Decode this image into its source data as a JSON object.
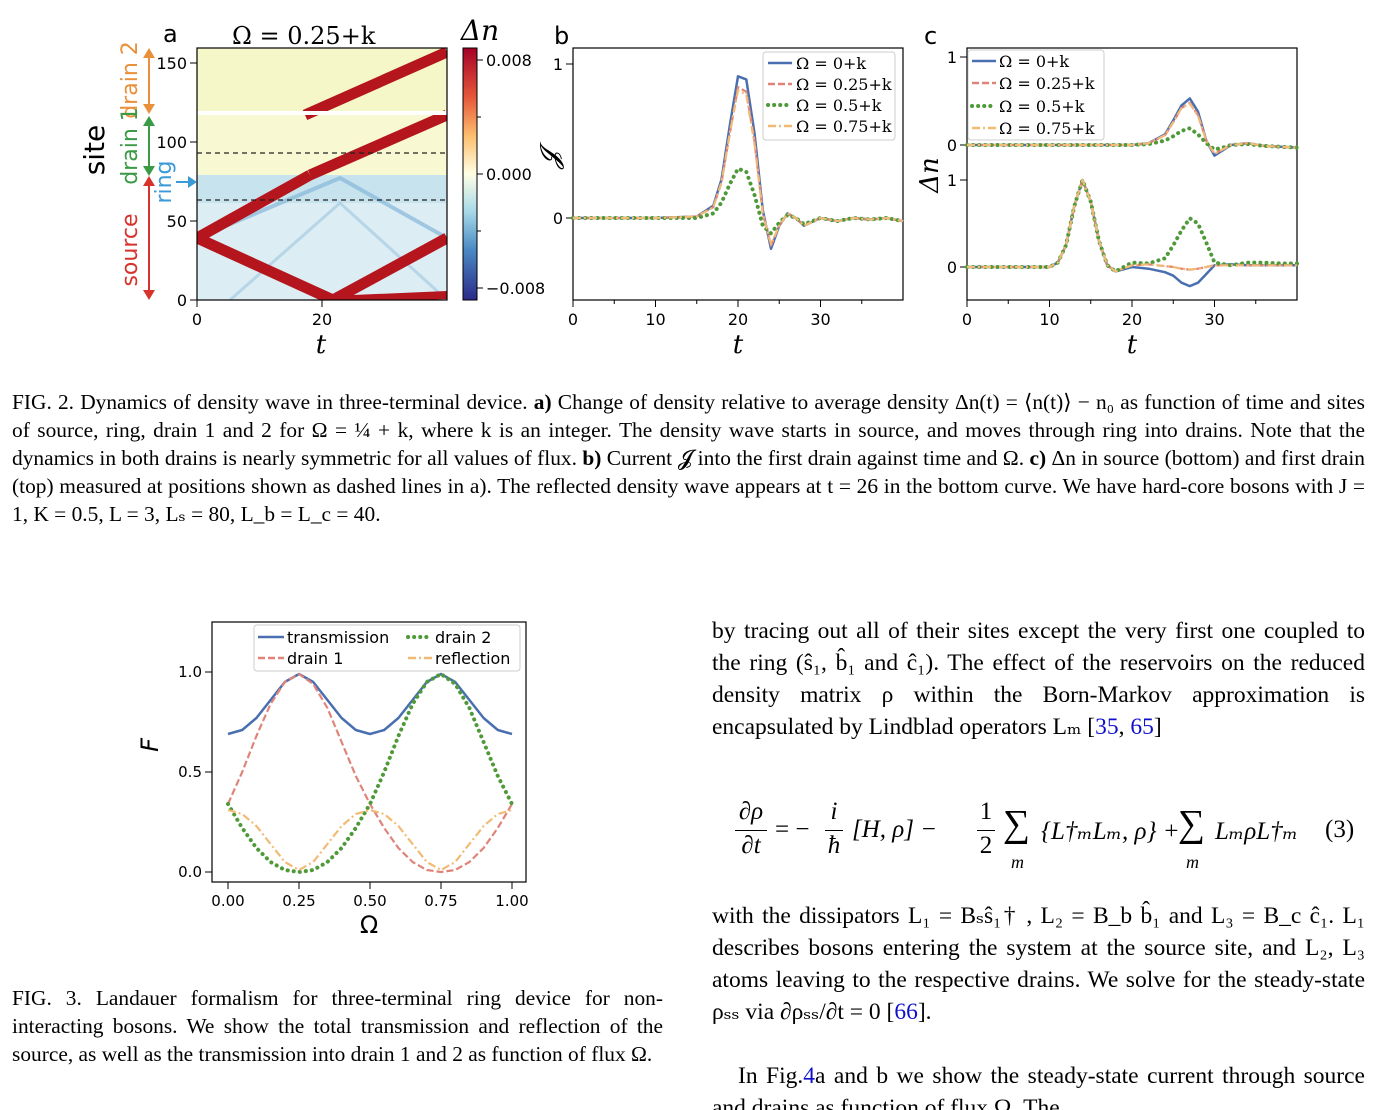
{
  "fig2": {
    "panel_a": {
      "letter": "a",
      "title": "Ω = 0.25+k",
      "cbar_title": "Δn",
      "cbar_ticks": [
        "0.008",
        "0.000",
        "−0.008"
      ],
      "ylabel": "site",
      "xlabel": "t",
      "yticks": [
        "0",
        "50",
        "100",
        "150"
      ],
      "xticks": [
        "0",
        "20"
      ],
      "regions": [
        {
          "name": "drain 2",
          "color": "#e8913a"
        },
        {
          "name": "drain 1",
          "color": "#3a9a45"
        },
        {
          "name": "ring",
          "color": "#3a9ad8"
        },
        {
          "name": "source",
          "color": "#d6332c"
        }
      ]
    },
    "panel_b": {
      "letter": "b",
      "ylabel": "𝓙",
      "xlabel": "t"
    },
    "panel_c": {
      "letter": "c",
      "ylabel": "Δn",
      "xlabel": "t"
    },
    "legend": [
      "Ω = 0+k",
      "Ω = 0.25+k",
      "Ω = 0.5+k",
      "Ω = 0.75+k"
    ],
    "caption": {
      "label": "FIG. 2.",
      "lead": "Dynamics of density wave in three-terminal device.",
      "a_label": "a)",
      "a_text": "Change of density relative to average density Δn(t) = ⟨n(t)⟩ − n₀ as function of time and sites of source, ring, drain 1 and 2 for Ω = ¼ + k, where k is an integer. The density wave starts in source, and moves through ring into drains. Note that the dynamics in both drains is nearly symmetric for all values of flux.",
      "b_label": "b)",
      "b_text": "Current 𝓙 into the first drain against time and Ω.",
      "c_label": "c)",
      "c_text": "Δn in source (bottom) and first drain (top) measured at positions shown as dashed lines in a). The reflected density wave appears at t = 26 in the bottom curve. We have hard-core bosons with J = 1, K = 0.5, L = 3, Lₛ = 80, L_b = L_c = 40."
    }
  },
  "fig3": {
    "ylabel": "F",
    "xlabel": "Ω",
    "legend": [
      "transmission",
      "drain 1",
      "drain 2",
      "reflection"
    ],
    "caption": "FIG. 3. Landauer formalism for three-terminal ring device for non-interacting bosons. We show the total transmission and reflection of the source, as well as the transmission into drain 1 and 2 as function of flux Ω."
  },
  "chart_data": [
    {
      "type": "heatmap",
      "title": "Ω = 0.25+k",
      "xlabel": "t",
      "ylabel": "site",
      "xlim": [
        0,
        40
      ],
      "ylim": [
        0,
        160
      ],
      "xticks": [
        0,
        20
      ],
      "yticks": [
        0,
        50,
        100,
        150
      ],
      "colorbar": {
        "label": "Δn",
        "range": [
          -0.008,
          0.008
        ],
        "ticks": [
          0.008,
          0.0,
          -0.008
        ]
      },
      "dashed_lines_site": [
        64,
        94
      ]
    },
    {
      "type": "line",
      "xlabel": "t",
      "ylabel": "𝓙",
      "xlim": [
        0,
        40
      ],
      "xticks": [
        0,
        10,
        20,
        30
      ],
      "yticks": [
        0,
        1
      ],
      "x": [
        0,
        5,
        10,
        15,
        17,
        18,
        19,
        20,
        21,
        22,
        23,
        24,
        25,
        26,
        27,
        28,
        30,
        32,
        34,
        36,
        38,
        40
      ],
      "series": [
        {
          "name": "Ω = 0+k",
          "values": [
            0,
            0,
            0,
            0.01,
            0.08,
            0.25,
            0.6,
            0.92,
            0.9,
            0.55,
            0.05,
            -0.2,
            -0.05,
            0.03,
            0.0,
            -0.05,
            0.0,
            -0.02,
            0.0,
            -0.01,
            0.0,
            -0.02
          ]
        },
        {
          "name": "Ω = 0.25+k",
          "values": [
            0,
            0,
            0,
            0.01,
            0.07,
            0.23,
            0.55,
            0.85,
            0.82,
            0.5,
            0.03,
            -0.18,
            -0.05,
            0.03,
            0.0,
            -0.05,
            0.0,
            -0.02,
            0.0,
            -0.01,
            0.0,
            -0.02
          ]
        },
        {
          "name": "Ω = 0.5+k",
          "values": [
            0,
            0,
            0,
            0.0,
            0.03,
            0.1,
            0.22,
            0.32,
            0.3,
            0.15,
            -0.05,
            -0.1,
            -0.03,
            0.02,
            0.0,
            -0.04,
            0.0,
            -0.02,
            0.0,
            -0.01,
            0.0,
            -0.02
          ]
        },
        {
          "name": "Ω = 0.75+k",
          "values": [
            0,
            0,
            0,
            0.01,
            0.07,
            0.23,
            0.55,
            0.83,
            0.8,
            0.48,
            0.03,
            -0.17,
            -0.05,
            0.03,
            0.0,
            -0.05,
            0.0,
            -0.02,
            0.0,
            -0.01,
            0.0,
            -0.02
          ]
        }
      ]
    },
    {
      "type": "line",
      "xlabel": "t",
      "ylabel": "Δn",
      "xlim": [
        0,
        40
      ],
      "xticks": [
        0,
        10,
        20,
        30
      ],
      "panels": [
        {
          "position": "top",
          "yticks": [
            0,
            1
          ],
          "x": [
            0,
            10,
            20,
            22,
            24,
            25,
            26,
            27,
            28,
            29,
            30,
            31,
            32,
            34,
            36,
            38,
            40
          ],
          "series": [
            {
              "name": "Ω = 0+k",
              "values": [
                0,
                0,
                0,
                0.02,
                0.12,
                0.28,
                0.45,
                0.53,
                0.38,
                0.05,
                -0.12,
                -0.06,
                0.0,
                0.02,
                -0.01,
                -0.02,
                -0.03
              ]
            },
            {
              "name": "Ω = 0.25+k",
              "values": [
                0,
                0,
                0,
                0.02,
                0.11,
                0.26,
                0.42,
                0.48,
                0.34,
                0.05,
                -0.1,
                -0.05,
                0.0,
                0.02,
                -0.01,
                -0.02,
                -0.03
              ]
            },
            {
              "name": "Ω = 0.5+k",
              "values": [
                0,
                0,
                0,
                0.01,
                0.05,
                0.1,
                0.16,
                0.19,
                0.12,
                0.02,
                -0.05,
                -0.03,
                0.0,
                0.01,
                -0.01,
                -0.02,
                -0.03
              ]
            },
            {
              "name": "Ω = 0.75+k",
              "values": [
                0,
                0,
                0,
                0.02,
                0.11,
                0.26,
                0.42,
                0.47,
                0.33,
                0.05,
                -0.1,
                -0.05,
                0.0,
                0.02,
                -0.01,
                -0.02,
                -0.03
              ]
            }
          ]
        },
        {
          "position": "bottom",
          "yticks": [
            0,
            1
          ],
          "x": [
            0,
            8,
            10,
            11,
            12,
            13,
            14,
            15,
            16,
            17,
            18,
            20,
            22,
            24,
            25,
            26,
            27,
            28,
            29,
            30,
            32,
            34,
            36,
            38,
            40
          ],
          "series": [
            {
              "name": "Ω = 0+k",
              "values": [
                0,
                0,
                0,
                0.05,
                0.25,
                0.7,
                1.0,
                0.75,
                0.3,
                0.02,
                -0.05,
                0.0,
                -0.02,
                -0.06,
                -0.1,
                -0.18,
                -0.22,
                -0.18,
                -0.08,
                0.02,
                0.03,
                0.02,
                0.02,
                0.02,
                0.02
              ]
            },
            {
              "name": "Ω = 0.25+k",
              "values": [
                0,
                0,
                0,
                0.05,
                0.25,
                0.7,
                1.0,
                0.75,
                0.3,
                0.02,
                -0.05,
                0.02,
                0.03,
                0.01,
                0.0,
                -0.02,
                -0.03,
                -0.02,
                0.0,
                0.02,
                0.02,
                0.02,
                0.02,
                0.02,
                0.02
              ]
            },
            {
              "name": "Ω = 0.5+k",
              "values": [
                0,
                0,
                0,
                0.05,
                0.25,
                0.7,
                1.0,
                0.75,
                0.3,
                0.02,
                -0.05,
                0.05,
                0.04,
                0.1,
                0.25,
                0.42,
                0.56,
                0.5,
                0.28,
                0.05,
                0.02,
                0.05,
                0.05,
                0.04,
                0.04
              ]
            },
            {
              "name": "Ω = 0.75+k",
              "values": [
                0,
                0,
                0,
                0.05,
                0.25,
                0.7,
                1.0,
                0.75,
                0.3,
                0.02,
                -0.05,
                0.02,
                0.03,
                0.01,
                0.0,
                -0.02,
                -0.03,
                -0.02,
                0.0,
                0.02,
                0.02,
                0.02,
                0.02,
                0.02,
                0.02
              ]
            }
          ]
        }
      ]
    },
    {
      "type": "line",
      "xlabel": "Ω",
      "ylabel": "F",
      "xlim": [
        -0.05,
        1.05
      ],
      "ylim": [
        -0.02,
        1.2
      ],
      "xticks": [
        0.0,
        0.25,
        0.5,
        0.75,
        1.0
      ],
      "yticks": [
        0.0,
        0.5,
        1.0
      ],
      "legend_position": "top",
      "x": [
        0.0,
        0.05,
        0.1,
        0.15,
        0.2,
        0.25,
        0.3,
        0.35,
        0.4,
        0.45,
        0.5,
        0.55,
        0.6,
        0.65,
        0.7,
        0.75,
        0.8,
        0.85,
        0.9,
        0.95,
        1.0
      ],
      "series": [
        {
          "name": "transmission",
          "values": [
            0.69,
            0.71,
            0.77,
            0.86,
            0.95,
            0.99,
            0.95,
            0.86,
            0.77,
            0.71,
            0.69,
            0.71,
            0.77,
            0.86,
            0.95,
            0.99,
            0.95,
            0.86,
            0.77,
            0.71,
            0.69
          ]
        },
        {
          "name": "drain 1",
          "values": [
            0.34,
            0.5,
            0.68,
            0.84,
            0.95,
            0.99,
            0.94,
            0.82,
            0.65,
            0.48,
            0.34,
            0.22,
            0.12,
            0.05,
            0.01,
            0.0,
            0.01,
            0.05,
            0.12,
            0.22,
            0.34
          ]
        },
        {
          "name": "drain 2",
          "values": [
            0.34,
            0.22,
            0.12,
            0.05,
            0.01,
            0.0,
            0.01,
            0.05,
            0.12,
            0.22,
            0.34,
            0.5,
            0.68,
            0.84,
            0.95,
            0.99,
            0.94,
            0.82,
            0.65,
            0.48,
            0.34
          ]
        },
        {
          "name": "reflection",
          "values": [
            0.31,
            0.29,
            0.23,
            0.14,
            0.05,
            0.01,
            0.05,
            0.14,
            0.23,
            0.29,
            0.31,
            0.29,
            0.23,
            0.14,
            0.05,
            0.01,
            0.05,
            0.14,
            0.23,
            0.29,
            0.31
          ]
        }
      ]
    }
  ],
  "body": {
    "p1": "by tracing out all of their sites except the very first one coupled to the ring (ŝ₁, b̂₁ and ĉ₁). The effect of the reservoirs on the reduced density matrix ρ within the Born-Markov approximation is encapsulated by Lindblad operators Lₘ",
    "p1_cite_open": "[",
    "p1_cite1": "35",
    "p1_cite_sep": ", ",
    "p1_cite2": "65",
    "p1_cite_close": "]",
    "eq_lhs_num": "∂ρ",
    "eq_lhs_den": "∂t",
    "eq_mid1": "= −",
    "eq_frac1_num": "i",
    "eq_frac1_den": "ħ",
    "eq_mid2": "[H, ρ] −",
    "eq_frac2_num": "1",
    "eq_frac2_den": "2",
    "eq_sum": "∑",
    "eq_sum_sub": "m",
    "eq_mid3": "{L†ₘLₘ, ρ} +",
    "eq_mid4": "LₘρL†ₘ",
    "eq_number": "(3)",
    "p2": "with the dissipators L₁ = Bₛŝ₁† , L₂ = B_b b̂₁ and L₃ = B_c ĉ₁. L₁ describes bosons entering the system at the source site, and L₂, L₃ atoms leaving to the respective drains. We solve for the steady-state ρₛₛ via ∂ρₛₛ/∂t = 0",
    "p2_cite_open": "[",
    "p2_cite": "66",
    "p2_cite_close": "].",
    "p3_start": "In Fig.",
    "p3_ref": "4",
    "p3_rest": "a and b we show the steady-state current through source and drains as function of flux Ω. The"
  },
  "colors": {
    "blue": "#4a6fb0",
    "red": "#e0847a",
    "green": "#4f9a38",
    "orange": "#f1bb76",
    "heat_pos": "#b5161e",
    "heat_neg": "#283a8f",
    "cite": "#1010cc"
  }
}
